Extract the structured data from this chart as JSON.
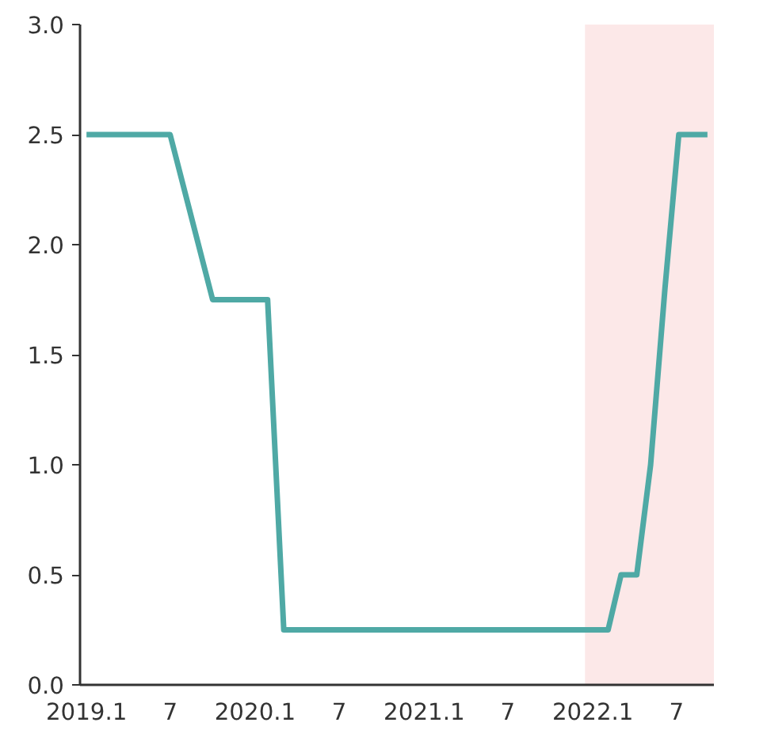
{
  "chart_data": {
    "type": "line",
    "x": [
      "2019-01-01",
      "2019-07-01",
      "2019-10-01",
      "2020-01-28",
      "2020-03-03",
      "2022-02-03",
      "2022-03-03",
      "2022-04-06",
      "2022-05-06",
      "2022-06-06",
      "2022-07-06",
      "2022-09-06"
    ],
    "series": [
      {
        "color": "#4fa9a5",
        "values": [
          2.5,
          2.5,
          1.75,
          1.75,
          0.25,
          0.25,
          0.5,
          0.5,
          1.0,
          1.8,
          2.5,
          2.5
        ]
      }
    ],
    "xlim": [
      "2018-12-18",
      "2022-09-20"
    ],
    "xticks": [
      {
        "value": "2019-01",
        "label": "2019.1"
      },
      {
        "value": "2019-07",
        "label": "7"
      },
      {
        "value": "2020-01",
        "label": "2020.1"
      },
      {
        "value": "2020-07",
        "label": "7"
      },
      {
        "value": "2021-01",
        "label": "2021.1"
      },
      {
        "value": "2021-07",
        "label": "7"
      },
      {
        "value": "2022-01",
        "label": "2022.1"
      },
      {
        "value": "2022-07",
        "label": "7"
      }
    ],
    "ylim": [
      0,
      3.0
    ],
    "yticks": [
      {
        "value": 0,
        "label": "0.0"
      },
      {
        "value": 0.5,
        "label": "0.5"
      },
      {
        "value": 1.0,
        "label": "1.0"
      },
      {
        "value": 1.5,
        "label": "1.5"
      },
      {
        "value": 2.0,
        "label": "2.0"
      },
      {
        "value": 2.5,
        "label": "2.5"
      },
      {
        "value": 3.0,
        "label": "3.0"
      }
    ],
    "bands": [
      {
        "axis": "x",
        "from": "2021-12-15",
        "to": "2022-09-20",
        "color": "#fce8e8"
      }
    ],
    "grid": false,
    "marker": "none",
    "line_style": "solid"
  }
}
